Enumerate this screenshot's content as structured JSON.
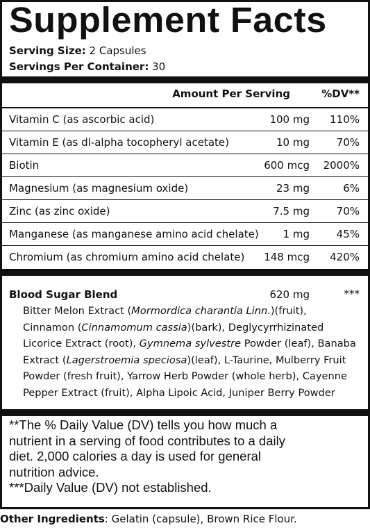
{
  "title": "Supplement Facts",
  "serving": {
    "size_label": "Serving Size:",
    "size_value": "2 Capsules",
    "per_container_label": "Servings Per Container:",
    "per_container_value": "30"
  },
  "header": {
    "amount": "Amount Per Serving",
    "dv": "%DV**"
  },
  "nutrients": [
    {
      "name": "Vitamin C (as ascorbic acid)",
      "amount": "100 mg",
      "dv": "110%"
    },
    {
      "name": "Vitamin E (as dl-alpha tocopheryl acetate)",
      "amount": "10 mg",
      "dv": "70%"
    },
    {
      "name": "Biotin",
      "amount": "600 mcg",
      "dv": "2000%"
    },
    {
      "name": "Magnesium (as magnesium oxide)",
      "amount": "23 mg",
      "dv": "6%"
    },
    {
      "name": "Zinc (as zinc oxide)",
      "amount": "7.5 mg",
      "dv": "70%"
    },
    {
      "name": "Manganese (as manganese amino acid chelate)",
      "amount": "1 mg",
      "dv": "45%"
    },
    {
      "name": "Chromium (as chromium amino acid chelate)",
      "amount": "148 mcg",
      "dv": "420%"
    }
  ],
  "blend": {
    "name": "Blood Sugar Blend",
    "amount": "620 mg",
    "dv": "***",
    "lines": [
      [
        {
          "t": "Bitter Melon Extract ("
        },
        {
          "t": "Mormordica charantia Linn.",
          "i": true
        },
        {
          "t": ")(fruit),"
        }
      ],
      [
        {
          "t": "Cinnamon ("
        },
        {
          "t": "Cinnamomum cassia",
          "i": true
        },
        {
          "t": ")(bark), Deglycyrrhizinated"
        }
      ],
      [
        {
          "t": "Licorice Extract (root), "
        },
        {
          "t": "Gymnema sylvestre",
          "i": true
        },
        {
          "t": " Powder (leaf), Banaba"
        }
      ],
      [
        {
          "t": "Extract ("
        },
        {
          "t": "Lagerstroemia speciosa",
          "i": true
        },
        {
          "t": ")(leaf), L-Taurine, Mulberry Fruit"
        }
      ],
      [
        {
          "t": "Powder (fresh fruit), Yarrow Herb Powder (whole herb), Cayenne"
        }
      ],
      [
        {
          "t": "Pepper Extract (fruit), Alpha Lipoic Acid, Juniper Berry Powder"
        }
      ]
    ]
  },
  "footnotes": {
    "lines": [
      "**The % Daily Value (DV) tells you how much a",
      "nutrient in a serving of food contributes to a daily",
      "diet. 2,000 calories a day is used for general",
      "nutrition advice.",
      "***Daily Value (DV) not established."
    ]
  },
  "other": {
    "label": "Other Ingredients",
    "value": ": Gelatin (capsule), Brown Rice Flour."
  }
}
